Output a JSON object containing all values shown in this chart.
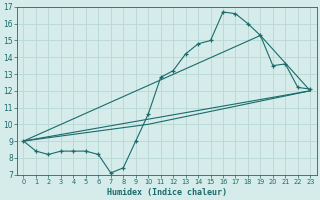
{
  "xlabel": "Humidex (Indice chaleur)",
  "xlim": [
    -0.5,
    23.5
  ],
  "ylim": [
    7,
    17
  ],
  "xticks": [
    0,
    1,
    2,
    3,
    4,
    5,
    6,
    7,
    8,
    9,
    10,
    11,
    12,
    13,
    14,
    15,
    16,
    17,
    18,
    19,
    20,
    21,
    22,
    23
  ],
  "yticks": [
    7,
    8,
    9,
    10,
    11,
    12,
    13,
    14,
    15,
    16,
    17
  ],
  "bg_color": "#d6ecea",
  "line_color": "#1a6b6b",
  "grid_color": "#b8d8d5",
  "main_line": {
    "x": [
      0,
      1,
      2,
      3,
      4,
      5,
      6,
      7,
      8,
      9,
      10,
      11,
      12,
      13,
      14,
      15,
      16,
      17,
      18,
      19,
      20,
      21,
      22,
      23
    ],
    "y": [
      9.0,
      8.4,
      8.2,
      8.4,
      8.4,
      8.4,
      8.2,
      7.1,
      7.4,
      9.0,
      10.6,
      12.8,
      13.2,
      14.2,
      14.8,
      15.0,
      16.7,
      16.6,
      16.0,
      15.3,
      13.5,
      13.6,
      12.2,
      12.1
    ]
  },
  "smooth_lines": [
    {
      "x": [
        0,
        23
      ],
      "y": [
        9.0,
        12.0
      ]
    },
    {
      "x": [
        0,
        10,
        23
      ],
      "y": [
        9.0,
        10.0,
        12.0
      ]
    },
    {
      "x": [
        0,
        19,
        23
      ],
      "y": [
        9.0,
        15.3,
        12.0
      ]
    }
  ]
}
